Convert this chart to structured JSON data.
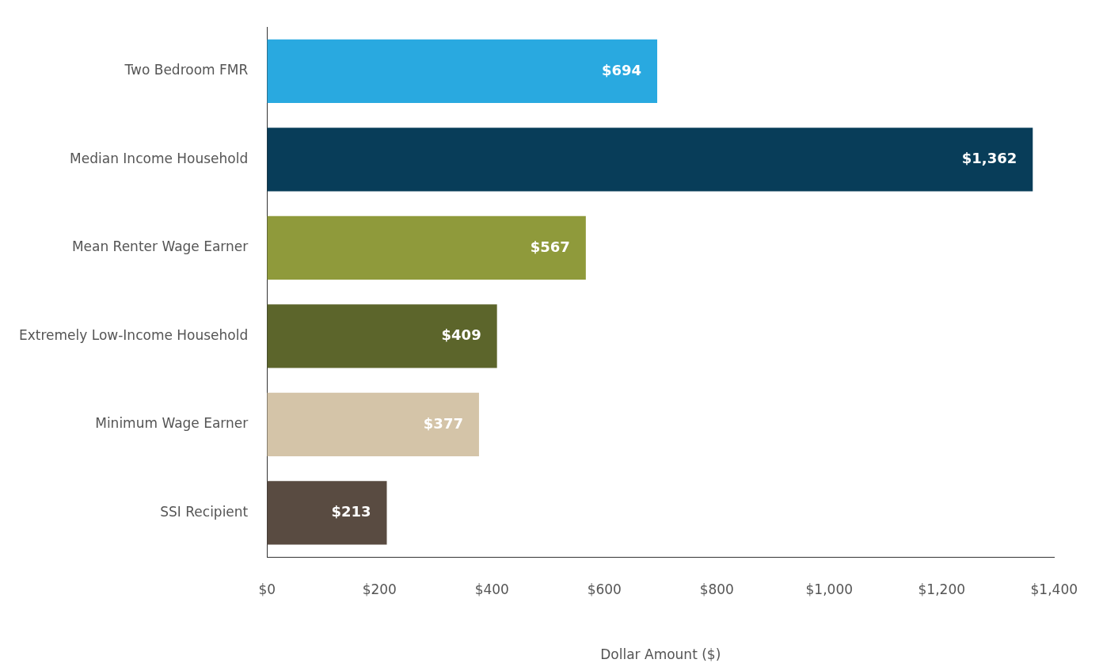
{
  "chart_data": {
    "type": "bar",
    "orientation": "horizontal",
    "xlabel": "Dollar Amount ($)",
    "categories": [
      "Two Bedroom FMR",
      "Median Income Household",
      "Mean Renter Wage Earner",
      "Extremely Low-Income Household",
      "Minimum Wage Earner",
      "SSI Recipient"
    ],
    "values": [
      694,
      1362,
      567,
      409,
      377,
      213
    ],
    "colors": [
      "#29a9e0",
      "#083d59",
      "#8f9a3b",
      "#5c652b",
      "#d4c4a8",
      "#594b41"
    ],
    "value_labels": [
      "$694",
      "$1,362",
      "$567",
      "$409",
      "$377",
      "$213"
    ],
    "xlim": [
      0,
      1400
    ],
    "xticks": [
      {
        "value": 0,
        "label": "$0"
      },
      {
        "value": 200,
        "label": "$200"
      },
      {
        "value": 400,
        "label": "$400"
      },
      {
        "value": 600,
        "label": "$600"
      },
      {
        "value": 800,
        "label": "$800"
      },
      {
        "value": 1000,
        "label": "$1,000"
      },
      {
        "value": 1200,
        "label": "$1,200"
      },
      {
        "value": 1400,
        "label": "$1,400"
      }
    ],
    "grid": false,
    "legend": false
  }
}
